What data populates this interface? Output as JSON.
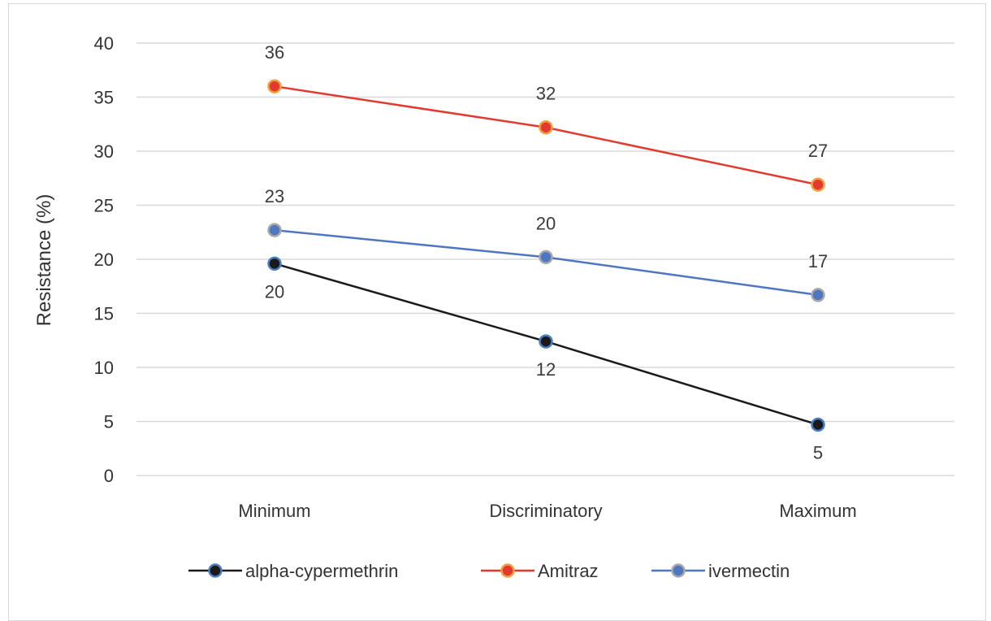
{
  "chart_data": {
    "type": "line",
    "title": "",
    "xlabel": "",
    "ylabel": "Resistance (%)",
    "categories": [
      "Minimum",
      "Discriminatory",
      "Maximum"
    ],
    "ylim": [
      0,
      40
    ],
    "yticks": [
      0,
      5,
      10,
      15,
      20,
      25,
      30,
      35,
      40
    ],
    "grid": true,
    "legend_position": "bottom",
    "series": [
      {
        "name": "alpha-cypermethrin",
        "values": [
          19.6,
          12.4,
          4.7
        ],
        "labels": [
          "20",
          "12",
          "5"
        ],
        "line_color": "#1a1a1a",
        "marker_fill": "#1a1a1a",
        "marker_edge": "#4a7ec4",
        "label_position": "below"
      },
      {
        "name": "Amitraz",
        "values": [
          36.0,
          32.2,
          26.9
        ],
        "labels": [
          "36",
          "32",
          "27"
        ],
        "line_color": "#e23a2e",
        "marker_fill": "#e23a2e",
        "marker_edge": "#f0a040",
        "label_position": "above"
      },
      {
        "name": "ivermectin",
        "values": [
          22.7,
          20.2,
          16.7
        ],
        "labels": [
          "23",
          "20",
          "17"
        ],
        "line_color": "#4f76c0",
        "marker_fill": "#4f76c0",
        "marker_edge": "#a8a8a8",
        "label_position": "above"
      }
    ]
  }
}
